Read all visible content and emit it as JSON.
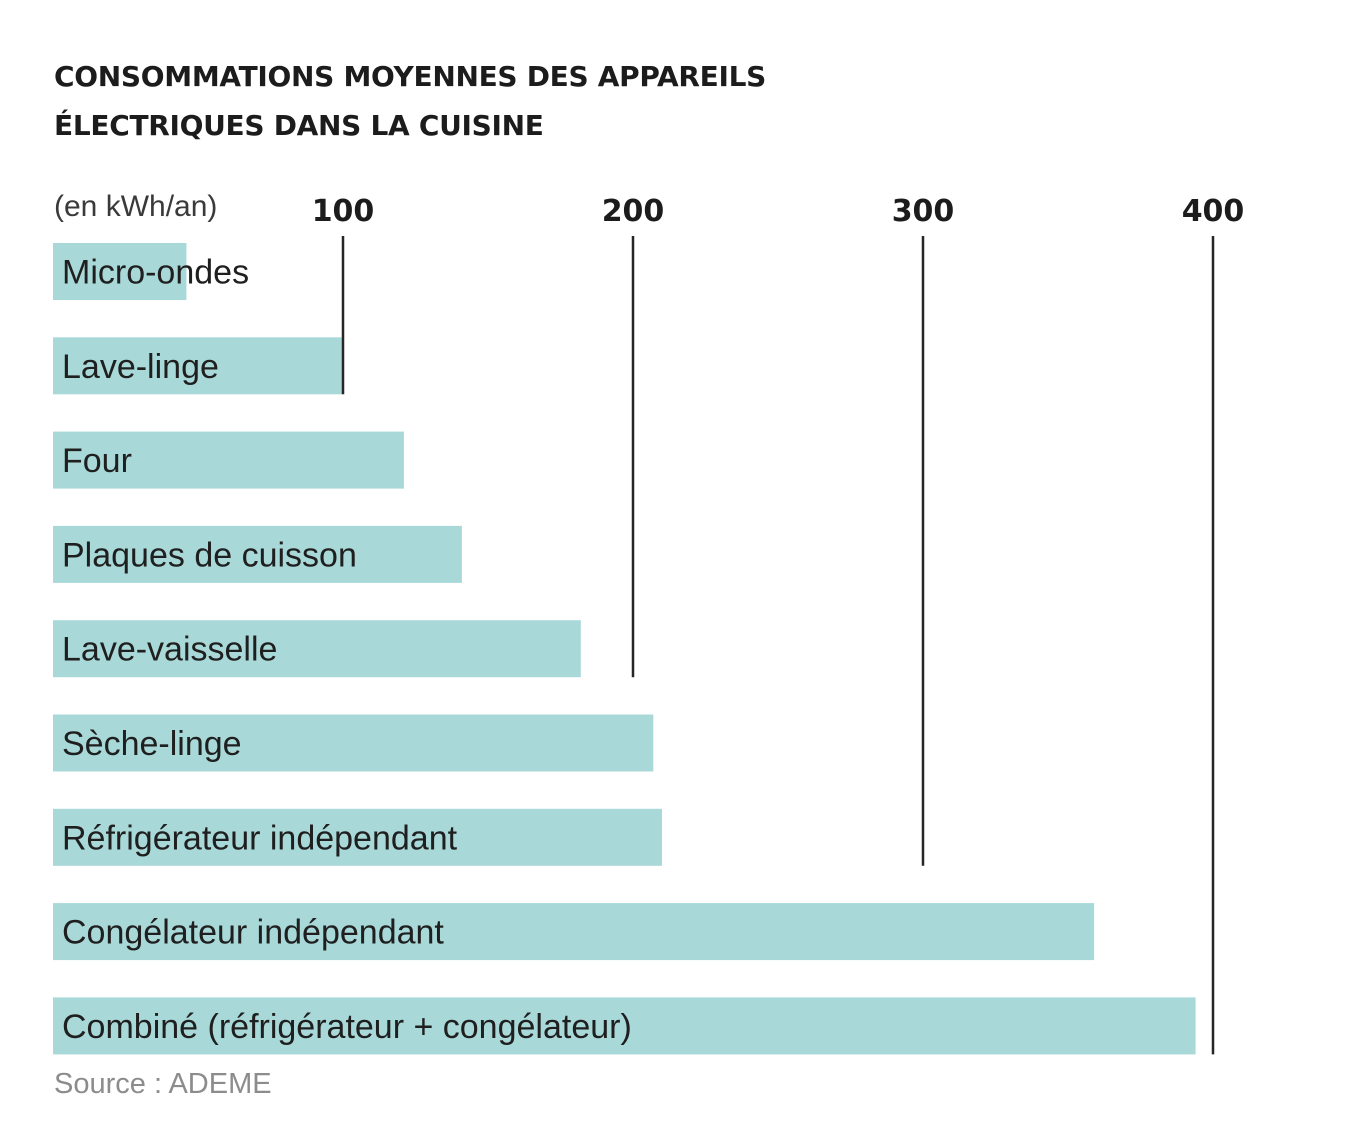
{
  "chart_data": {
    "type": "bar",
    "orientation": "horizontal",
    "title_lines": [
      "CONSOMMATIONS MOYENNES DES APPAREILS",
      "ÉLECTRIQUES DANS LA CUISINE"
    ],
    "unit_label": "(en kWh/an)",
    "ticks": [
      100,
      200,
      300,
      400
    ],
    "xlim": [
      0,
      400
    ],
    "categories": [
      "Micro-ondes",
      "Lave-linge",
      "Four",
      "Plaques de cuisson",
      "Lave-vaisselle",
      "Sèche-linge",
      "Réfrigérateur indépendant",
      "Congélateur indépendant",
      "Combiné (réfrigérateur + congélateur)"
    ],
    "values": [
      46,
      100,
      121,
      141,
      182,
      207,
      210,
      359,
      394
    ],
    "bar_color": "#a8d8d8",
    "grid": true,
    "source": "Source : ADEME"
  }
}
